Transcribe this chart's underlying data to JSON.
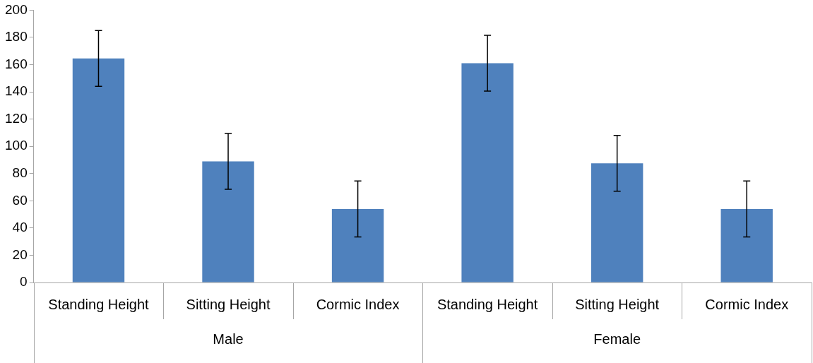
{
  "chart_data": {
    "type": "bar",
    "categories": [
      "Standing Height",
      "Sitting Height",
      "Cormic Index",
      "Standing Height",
      "Sitting Height",
      "Cormic Index"
    ],
    "values": [
      164.5,
      89,
      54,
      161,
      87.5,
      54
    ],
    "errors": [
      20.5,
      20.5,
      20.5,
      20.5,
      20.5,
      20.5
    ],
    "color": "#4f81bd",
    "annotations": [
      "Male",
      "Female"
    ],
    "ylim": [
      0,
      200
    ],
    "yticks": [
      0,
      20,
      40,
      60,
      80,
      100,
      120,
      140,
      160,
      180,
      200
    ],
    "grid": false,
    "legend": false
  }
}
